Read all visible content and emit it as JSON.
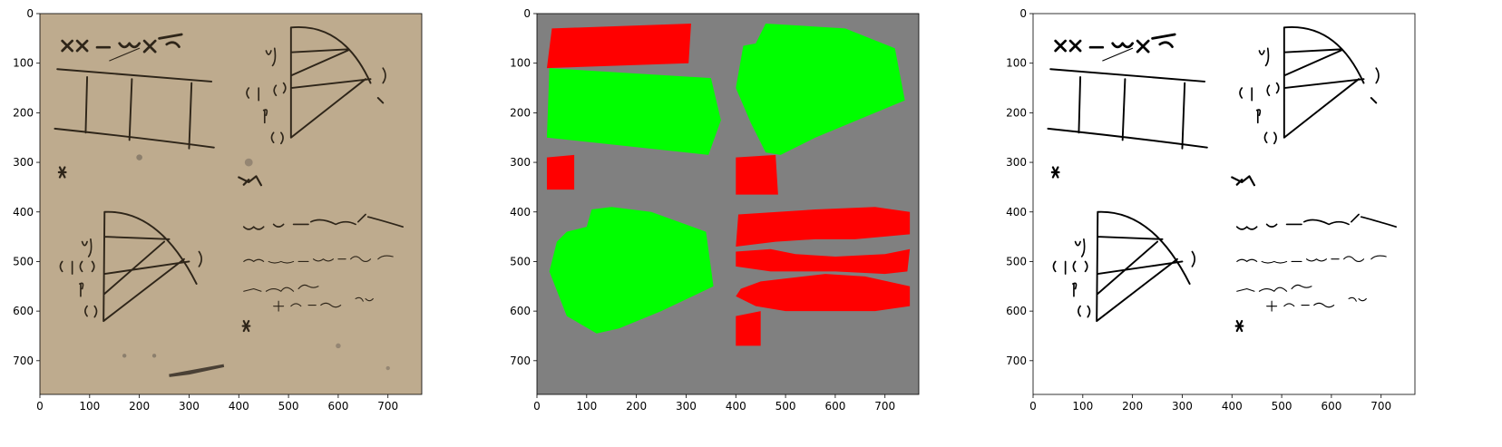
{
  "chart_data": [
    {
      "type": "image",
      "xlim": [
        0,
        768
      ],
      "ylim": [
        768,
        0
      ],
      "xticks": [
        0,
        100,
        200,
        300,
        400,
        500,
        600,
        700
      ],
      "yticks": [
        0,
        100,
        200,
        300,
        400,
        500,
        600,
        700
      ]
    },
    {
      "type": "image",
      "xlim": [
        0,
        768
      ],
      "ylim": [
        768,
        0
      ],
      "xticks": [
        0,
        100,
        200,
        300,
        400,
        500,
        600,
        700
      ],
      "yticks": [
        0,
        100,
        200,
        300,
        400,
        500,
        600,
        700
      ]
    },
    {
      "type": "image",
      "xlim": [
        0,
        768
      ],
      "ylim": [
        768,
        0
      ],
      "xticks": [
        0,
        100,
        200,
        300,
        400,
        500,
        600,
        700
      ],
      "yticks": [
        0,
        100,
        200,
        300,
        400,
        500,
        600,
        700
      ]
    }
  ]
}
